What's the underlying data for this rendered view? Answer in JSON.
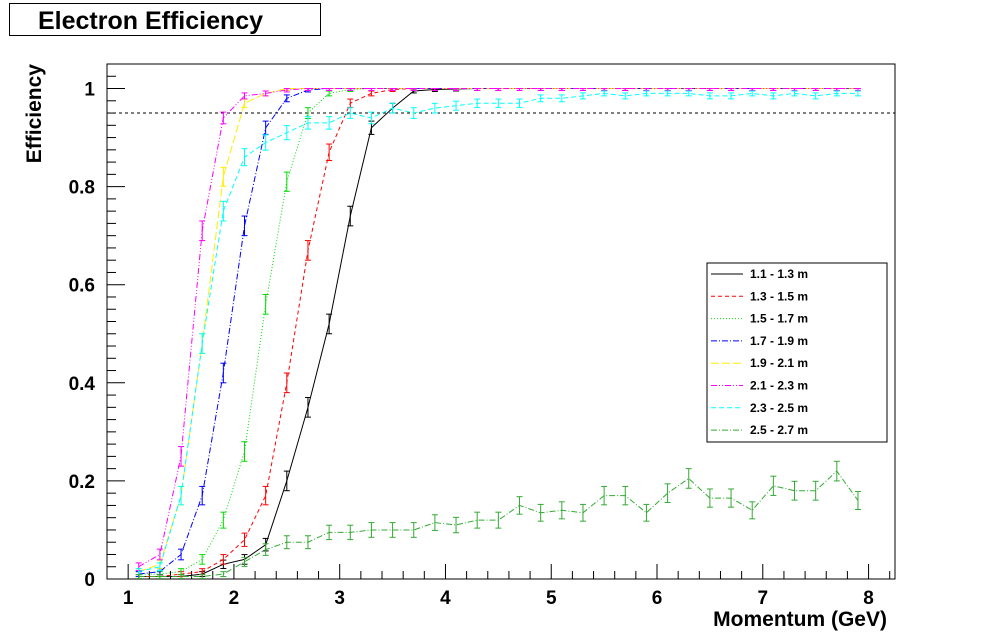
{
  "chart_data": {
    "type": "line",
    "title": "Electron Efficiency",
    "xlabel": "Momentum (GeV)",
    "ylabel": "Efficiency",
    "xlim": [
      0.8,
      8.25
    ],
    "ylim": [
      0,
      1.05
    ],
    "x_ticks": [
      "1",
      "2",
      "3",
      "4",
      "5",
      "6",
      "7",
      "8"
    ],
    "y_ticks": [
      "0",
      "0.2",
      "0.4",
      "0.6",
      "0.8",
      "1"
    ],
    "reference_line": 0.95,
    "legend_position": "right",
    "x": [
      1.1,
      1.3,
      1.5,
      1.7,
      1.9,
      2.1,
      2.3,
      2.5,
      2.7,
      2.9,
      3.1,
      3.3,
      3.5,
      3.7,
      3.9,
      4.1,
      4.3,
      4.5,
      4.7,
      4.9,
      5.1,
      5.3,
      5.5,
      5.7,
      5.9,
      6.1,
      6.3,
      6.5,
      6.7,
      6.9,
      7.1,
      7.3,
      7.5,
      7.7,
      7.9
    ],
    "series": [
      {
        "name": "1.1 - 1.3 m",
        "color": "#000000",
        "dash": "",
        "values": [
          0.005,
          0.005,
          0.005,
          0.01,
          0.03,
          0.04,
          0.07,
          0.2,
          0.35,
          0.52,
          0.74,
          0.92,
          0.96,
          0.995,
          0.998,
          0.999,
          1,
          1,
          1,
          1,
          1,
          1,
          1,
          1,
          1,
          1,
          1,
          1,
          1,
          1,
          1,
          1,
          1,
          1,
          1
        ]
      },
      {
        "name": "1.3 - 1.5 m",
        "color": "#ff0000",
        "dash": "4,3",
        "values": [
          0.005,
          0.005,
          0.01,
          0.015,
          0.04,
          0.08,
          0.17,
          0.4,
          0.67,
          0.87,
          0.97,
          0.99,
          0.998,
          1,
          1,
          1,
          1,
          1,
          1,
          1,
          1,
          1,
          1,
          1,
          1,
          1,
          1,
          1,
          1,
          1,
          1,
          1,
          1,
          1,
          1
        ]
      },
      {
        "name": "1.5 - 1.7 m",
        "color": "#00dd00",
        "dash": "1,2",
        "values": [
          0.01,
          0.01,
          0.015,
          0.04,
          0.12,
          0.26,
          0.56,
          0.81,
          0.95,
          0.99,
          0.998,
          1,
          1,
          1,
          1,
          1,
          1,
          1,
          1,
          1,
          1,
          1,
          1,
          1,
          1,
          1,
          1,
          1,
          1,
          1,
          1,
          1,
          1,
          1,
          1
        ]
      },
      {
        "name": "1.7 - 1.9 m",
        "color": "#0000ff",
        "dash": "6,2,1,2",
        "values": [
          0.01,
          0.015,
          0.05,
          0.17,
          0.42,
          0.72,
          0.92,
          0.98,
          0.997,
          1,
          1,
          1,
          1,
          1,
          1,
          1,
          1,
          1,
          1,
          1,
          1,
          1,
          1,
          1,
          1,
          1,
          1,
          1,
          1,
          1,
          1,
          1,
          1,
          1,
          1
        ]
      },
      {
        "name": "1.9 - 2.1 m",
        "color": "#ffee00",
        "dash": "8,3",
        "values": [
          0.015,
          0.03,
          0.17,
          0.48,
          0.82,
          0.97,
          0.99,
          1,
          1,
          1,
          1,
          1,
          1,
          1,
          1,
          1,
          1,
          1,
          1,
          1,
          1,
          1,
          1,
          1,
          1,
          1,
          1,
          1,
          1,
          1,
          1,
          1,
          1,
          1,
          1
        ]
      },
      {
        "name": "2.1 - 2.3 m",
        "color": "#ff00ff",
        "dash": "6,2,1,2,1,2",
        "values": [
          0.025,
          0.05,
          0.25,
          0.71,
          0.94,
          0.985,
          0.99,
          0.997,
          1,
          1,
          1,
          1,
          1,
          1,
          1,
          1,
          1,
          1,
          1,
          1,
          1,
          1,
          1,
          1,
          1,
          1,
          1,
          1,
          1,
          1,
          1,
          1,
          1,
          1,
          1
        ]
      },
      {
        "name": "2.3 - 2.5 m",
        "color": "#00ffff",
        "dash": "5,3",
        "values": [
          0.015,
          0.025,
          0.17,
          0.48,
          0.75,
          0.86,
          0.89,
          0.91,
          0.93,
          0.93,
          0.95,
          0.94,
          0.96,
          0.95,
          0.96,
          0.965,
          0.97,
          0.97,
          0.97,
          0.98,
          0.98,
          0.985,
          0.99,
          0.985,
          0.99,
          0.99,
          0.99,
          0.985,
          0.985,
          0.99,
          0.985,
          0.99,
          0.985,
          0.99,
          0.99
        ]
      },
      {
        "name": "2.5 - 2.7 m",
        "color": "#33aa33",
        "dash": "6,2,1,2",
        "values": [
          0.005,
          0.005,
          0.005,
          0.005,
          0.01,
          0.035,
          0.06,
          0.075,
          0.075,
          0.095,
          0.095,
          0.1,
          0.1,
          0.1,
          0.115,
          0.11,
          0.12,
          0.12,
          0.15,
          0.135,
          0.14,
          0.135,
          0.17,
          0.17,
          0.135,
          0.175,
          0.205,
          0.165,
          0.165,
          0.14,
          0.19,
          0.18,
          0.18,
          0.22,
          0.16
        ]
      }
    ]
  }
}
